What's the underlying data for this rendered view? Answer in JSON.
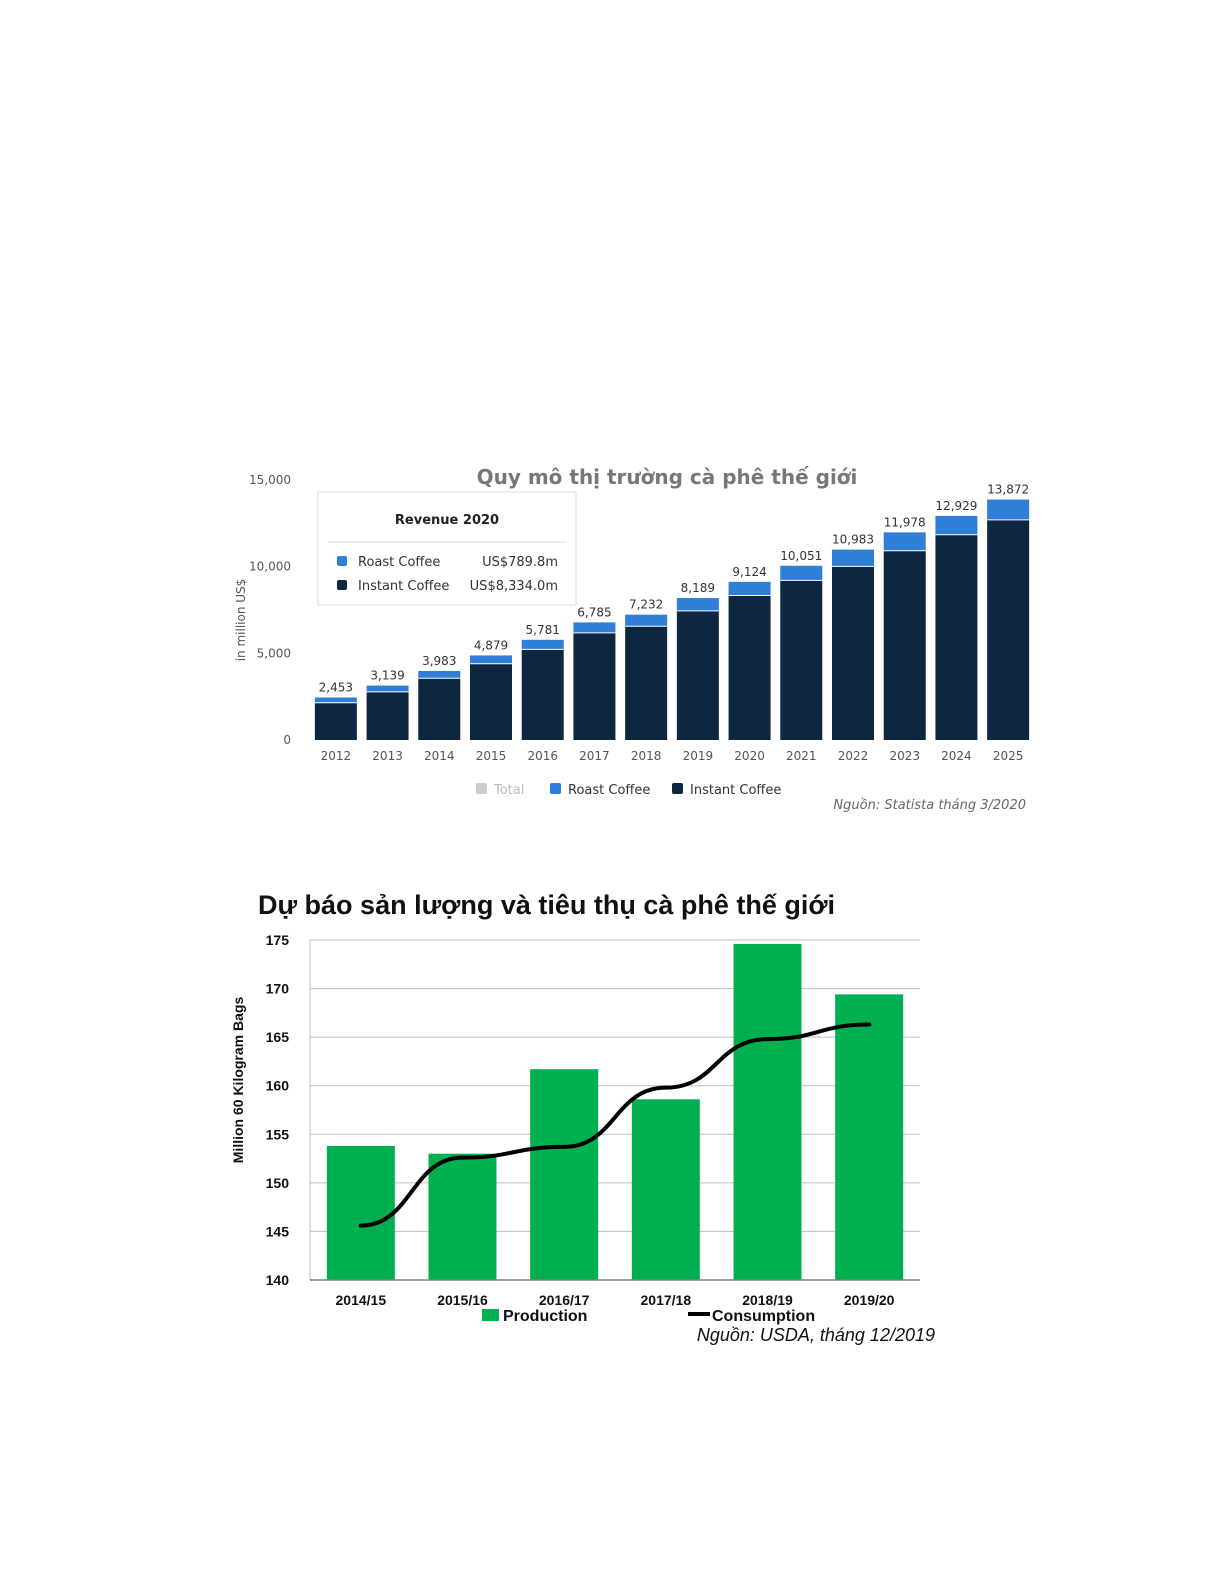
{
  "chart_data": [
    {
      "type": "bar",
      "stacked": true,
      "title": "Quy mô thị trường cà phê thế giới",
      "ylabel": "in million US$",
      "xlabel": "",
      "ylim": [
        0,
        15000
      ],
      "yticks": [
        "0",
        "5,000",
        "10,000",
        "15,000"
      ],
      "categories": [
        "2012",
        "2013",
        "2014",
        "2015",
        "2016",
        "2017",
        "2018",
        "2019",
        "2020",
        "2021",
        "2022",
        "2023",
        "2024",
        "2025"
      ],
      "series": [
        {
          "name": "Instant Coffee",
          "color": "#0e2740",
          "values": [
            2150,
            2780,
            3560,
            4400,
            5230,
            6180,
            6560,
            7450,
            8334,
            9210,
            10020,
            10920,
            11840,
            12700
          ]
        },
        {
          "name": "Roast Coffee",
          "color": "#2f7ed8",
          "values": [
            303,
            359,
            423,
            479,
            551,
            605,
            672,
            739,
            790,
            841,
            963,
            1058,
            1089,
            1172
          ]
        }
      ],
      "totals": [
        "2,453",
        "3,139",
        "3,983",
        "4,879",
        "5,781",
        "6,785",
        "7,232",
        "8,189",
        "9,124",
        "10,051",
        "10,983",
        "11,978",
        "12,929",
        "13,872"
      ],
      "legend": {
        "placement": "bottom",
        "items": [
          {
            "label": "Total",
            "color": "#cccccc"
          },
          {
            "label": "Roast Coffee",
            "color": "#2f7ed8"
          },
          {
            "label": "Instant Coffee",
            "color": "#0e2740"
          }
        ]
      },
      "tooltip": {
        "title": "Revenue 2020",
        "rows": [
          {
            "label": "Roast Coffee",
            "value": "US$789.8m",
            "color": "#2f7ed8"
          },
          {
            "label": "Instant Coffee",
            "value": "US$8,334.0m",
            "color": "#0e2740"
          }
        ]
      },
      "source": "Nguồn: Statista tháng 3/2020",
      "grid": false
    },
    {
      "type": "bar",
      "title": "Dự  báo sản lượng và tiêu thụ cà phê thế giới",
      "ylabel": "Million 60 Kilogram Bags",
      "xlabel": "",
      "ylim": [
        140,
        175
      ],
      "yticks": [
        "140",
        "145",
        "150",
        "155",
        "160",
        "165",
        "170",
        "175"
      ],
      "categories": [
        "2014/15",
        "2015/16",
        "2016/17",
        "2017/18",
        "2018/19",
        "2019/20"
      ],
      "series": [
        {
          "name": "Production",
          "kind": "bar",
          "color": "#00b050",
          "values": [
            153.8,
            153.0,
            161.7,
            158.6,
            174.6,
            169.4
          ]
        },
        {
          "name": "Consumption",
          "kind": "line",
          "color": "#000000",
          "values": [
            145.6,
            152.6,
            153.7,
            159.8,
            164.8,
            166.3
          ]
        }
      ],
      "legend": {
        "placement": "bottom",
        "items": [
          {
            "label": "Production",
            "color": "#00b050"
          },
          {
            "label": "Consumption",
            "color": "#000000"
          }
        ]
      },
      "source": "Nguồn: USDA, tháng 12/2019",
      "grid": true
    }
  ]
}
